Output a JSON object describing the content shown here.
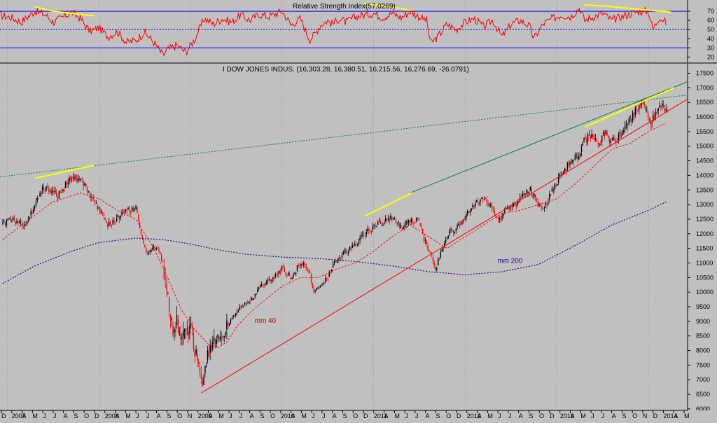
{
  "colors": {
    "background": "#c0c0c0",
    "grid": "#8c8c8c",
    "rsi_line": "#ff0000",
    "rsi_levels": "#0000ff",
    "up_candle": "#000000",
    "down_candle": "#ff0000",
    "ma40": "#ff0000",
    "ma200": "#3a008a",
    "support_line": "#ff0000",
    "resistance_line": "#008040",
    "channel_top_dotted": "#008040",
    "divergence_lines": "#ffff00"
  },
  "chart_data": [
    {
      "id": "rsi",
      "type": "line",
      "title": "Relative Strength Index(57.0269)",
      "ylim": [
        15,
        80
      ],
      "y_ticks": [
        20,
        30,
        40,
        50,
        60,
        70
      ],
      "levels": [
        {
          "value": 70,
          "style": "solid"
        },
        {
          "value": 50,
          "style": "dotted"
        },
        {
          "value": 30,
          "style": "solid"
        }
      ],
      "series": [
        {
          "x": [
            2006.92,
            2007.05,
            2007.15,
            2007.3,
            2007.42,
            2007.5,
            2007.6,
            2007.7,
            2007.8,
            2007.9,
            2008.0,
            2008.1,
            2008.2,
            2008.3,
            2008.4,
            2008.5,
            2008.6,
            2008.7,
            2008.75,
            2008.85,
            2008.95,
            2009.05,
            2009.15,
            2009.25,
            2009.35,
            2009.45,
            2009.55,
            2009.65,
            2009.75,
            2009.85,
            2010.0,
            2010.1,
            2010.2,
            2010.3,
            2010.35,
            2010.42,
            2010.5,
            2010.55,
            2010.62,
            2010.7,
            2010.8,
            2010.9,
            2011.0,
            2011.1,
            2011.2,
            2011.3,
            2011.4,
            2011.5,
            2011.58,
            2011.62,
            2011.7,
            2011.8,
            2011.9,
            2012.0,
            2012.1,
            2012.2,
            2012.3,
            2012.4,
            2012.5,
            2012.6,
            2012.7,
            2012.75,
            2012.85,
            2012.95,
            2013.05,
            2013.15,
            2013.25,
            2013.3,
            2013.4,
            2013.5,
            2013.6,
            2013.7,
            2013.8,
            2013.9,
            2014.0,
            2014.05,
            2014.12,
            2014.2
          ],
          "y": [
            66,
            63,
            58,
            70,
            66,
            58,
            63,
            69,
            62,
            48,
            52,
            42,
            48,
            36,
            38,
            47,
            36,
            22,
            28,
            33,
            25,
            40,
            62,
            56,
            62,
            58,
            66,
            60,
            67,
            64,
            70,
            55,
            62,
            39,
            44,
            55,
            60,
            56,
            62,
            58,
            64,
            66,
            68,
            63,
            68,
            63,
            70,
            64,
            60,
            35,
            42,
            56,
            50,
            58,
            62,
            53,
            60,
            42,
            56,
            60,
            54,
            40,
            56,
            62,
            66,
            64,
            74,
            60,
            64,
            68,
            60,
            64,
            67,
            70,
            70,
            50,
            64,
            57
          ]
        }
      ],
      "divergence_segments": [
        {
          "x": [
            2007.3,
            2007.5
          ],
          "y": [
            75,
            70
          ]
        },
        {
          "x": [
            2007.5,
            2007.95
          ],
          "y": [
            70,
            65
          ]
        },
        {
          "x": [
            2010.9,
            2011.42
          ],
          "y": [
            79,
            71
          ]
        },
        {
          "x": [
            2013.3,
            2013.6
          ],
          "y": [
            77,
            75
          ]
        },
        {
          "x": [
            2013.6,
            2014.25
          ],
          "y": [
            75,
            69
          ]
        }
      ]
    },
    {
      "id": "price",
      "type": "candlestick",
      "title": "I DOW JONES INDUS. (16,303.28, 16,380.51, 16,215.56, 16,276.69, -26.0791)",
      "ylim": [
        5950,
        17800
      ],
      "y_ticks": [
        6000,
        6500,
        7000,
        7500,
        8000,
        8500,
        9000,
        9500,
        10000,
        10500,
        11000,
        11500,
        12000,
        12500,
        13000,
        13500,
        14000,
        14500,
        15000,
        15500,
        16000,
        16500,
        17000,
        17500
      ],
      "x_labels": [
        "D",
        "2007",
        "A",
        "M",
        "J",
        "J",
        "A",
        "S",
        "O",
        "D",
        "2008",
        "A",
        "M",
        "J",
        "J",
        "A",
        "S",
        "O",
        "N",
        "2009",
        "A",
        "M",
        "J",
        "J",
        "A",
        "S",
        "O",
        "2010",
        "A",
        "M",
        "J",
        "J",
        "A",
        "S",
        "O",
        "D",
        "2011",
        "A",
        "M",
        "J",
        "J",
        "A",
        "S",
        "O",
        "D",
        "2012",
        "A",
        "M",
        "J",
        "J",
        "A",
        "S",
        "O",
        "D",
        "2013",
        "A",
        "M",
        "J",
        "J",
        "A",
        "S",
        "O",
        "N",
        "D",
        "2014",
        "A",
        "M"
      ],
      "close_path": {
        "x": [
          2006.95,
          2007.05,
          2007.15,
          2007.2,
          2007.3,
          2007.4,
          2007.55,
          2007.62,
          2007.7,
          2007.8,
          2007.9,
          2008.0,
          2008.1,
          2008.2,
          2008.3,
          2008.4,
          2008.5,
          2008.55,
          2008.62,
          2008.7,
          2008.75,
          2008.8,
          2008.85,
          2008.9,
          2009.0,
          2009.08,
          2009.12,
          2009.18,
          2009.25,
          2009.35,
          2009.45,
          2009.5,
          2009.55,
          2009.65,
          2009.75,
          2009.85,
          2010.0,
          2010.1,
          2010.2,
          2010.3,
          2010.35,
          2010.4,
          2010.45,
          2010.5,
          2010.55,
          2010.62,
          2010.7,
          2010.8,
          2010.9,
          2011.0,
          2011.1,
          2011.2,
          2011.3,
          2011.4,
          2011.5,
          2011.55,
          2011.62,
          2011.68,
          2011.75,
          2011.82,
          2011.9,
          2012.0,
          2012.1,
          2012.2,
          2012.3,
          2012.38,
          2012.45,
          2012.55,
          2012.65,
          2012.72,
          2012.8,
          2012.88,
          2012.95,
          2013.05,
          2013.15,
          2013.22,
          2013.3,
          2013.38,
          2013.45,
          2013.52,
          2013.6,
          2013.68,
          2013.75,
          2013.82,
          2013.88,
          2013.95,
          2014.02,
          2014.08,
          2014.15,
          2014.22
        ],
        "y": [
          12300,
          12500,
          12350,
          12200,
          13000,
          13600,
          13300,
          13600,
          13900,
          13900,
          13300,
          12900,
          12300,
          12500,
          12800,
          12900,
          11500,
          11300,
          11600,
          11000,
          10000,
          8700,
          9000,
          8500,
          8800,
          7500,
          6800,
          7800,
          8200,
          8500,
          9100,
          9300,
          9500,
          9700,
          10100,
          10400,
          10800,
          10500,
          11000,
          10700,
          10000,
          10200,
          10300,
          10500,
          10900,
          11200,
          11400,
          11600,
          12000,
          12200,
          12400,
          12600,
          12200,
          12500,
          12400,
          11800,
          11300,
          10800,
          11500,
          12000,
          12200,
          12600,
          13000,
          13200,
          12800,
          12500,
          12900,
          13000,
          13400,
          13500,
          12900,
          13000,
          13500,
          14000,
          14500,
          14600,
          15200,
          15400,
          15000,
          15500,
          15100,
          15300,
          15600,
          16000,
          16300,
          16500,
          15600,
          16200,
          16400,
          16280
        ]
      },
      "ma40": {
        "name": "mm 40",
        "x": [
          2006.95,
          2007.2,
          2007.5,
          2007.8,
          2008.0,
          2008.2,
          2008.4,
          2008.6,
          2008.75,
          2008.9,
          2009.05,
          2009.2,
          2009.3,
          2009.4,
          2009.5,
          2009.65,
          2009.8,
          2010.0,
          2010.2,
          2010.4,
          2010.6,
          2010.8,
          2011.0,
          2011.2,
          2011.4,
          2011.6,
          2011.8,
          2012.0,
          2012.2,
          2012.4,
          2012.6,
          2012.8,
          2013.0,
          2013.2,
          2013.4,
          2013.6,
          2013.8,
          2014.0,
          2014.2
        ],
        "y": [
          11800,
          12400,
          13100,
          13400,
          13200,
          12800,
          12500,
          11500,
          10500,
          9400,
          8700,
          8200,
          8100,
          8300,
          8800,
          9300,
          9700,
          10200,
          10500,
          10500,
          10800,
          11000,
          11400,
          11900,
          12300,
          11900,
          11500,
          11900,
          12300,
          12700,
          12800,
          13000,
          13200,
          13700,
          14300,
          14900,
          15100,
          15500,
          15800
        ]
      },
      "ma200": {
        "name": "mm 200",
        "x": [
          2006.95,
          2007.3,
          2007.7,
          2008.0,
          2008.4,
          2008.7,
          2009.0,
          2009.3,
          2009.6,
          2010.0,
          2010.4,
          2010.8,
          2011.2,
          2011.6,
          2012.0,
          2012.4,
          2012.8,
          2013.2,
          2013.6,
          2014.0,
          2014.2
        ],
        "y": [
          10300,
          10900,
          11400,
          11700,
          11850,
          11800,
          11650,
          11450,
          11300,
          11200,
          11150,
          11050,
          10900,
          10700,
          10600,
          10700,
          10950,
          11600,
          12300,
          12800,
          13100
        ]
      },
      "support_line": {
        "x": [
          2009.12,
          2014.42
        ],
        "y": [
          6550,
          16600
        ]
      },
      "resistance_line": {
        "x": [
          2011.4,
          2014.42
        ],
        "y": [
          13400,
          17200
        ]
      },
      "channel_top_dotted": {
        "x": [
          2006.92,
          2014.42
        ],
        "y": [
          13950,
          16750
        ]
      },
      "divergence_segments": [
        {
          "x": [
            2007.3,
            2007.95
          ],
          "y": [
            13900,
            14350
          ]
        },
        {
          "x": [
            2010.9,
            2011.42
          ],
          "y": [
            12600,
            13400
          ]
        },
        {
          "x": [
            2013.3,
            2014.28
          ],
          "y": [
            15650,
            17000
          ]
        }
      ],
      "annotations": [
        {
          "text": "mm 40",
          "x": 2009.7,
          "y": 8950,
          "color": "#cc0000"
        },
        {
          "text": "mm 200",
          "x": 2012.35,
          "y": 11000,
          "color": "#3a008a"
        }
      ]
    }
  ]
}
